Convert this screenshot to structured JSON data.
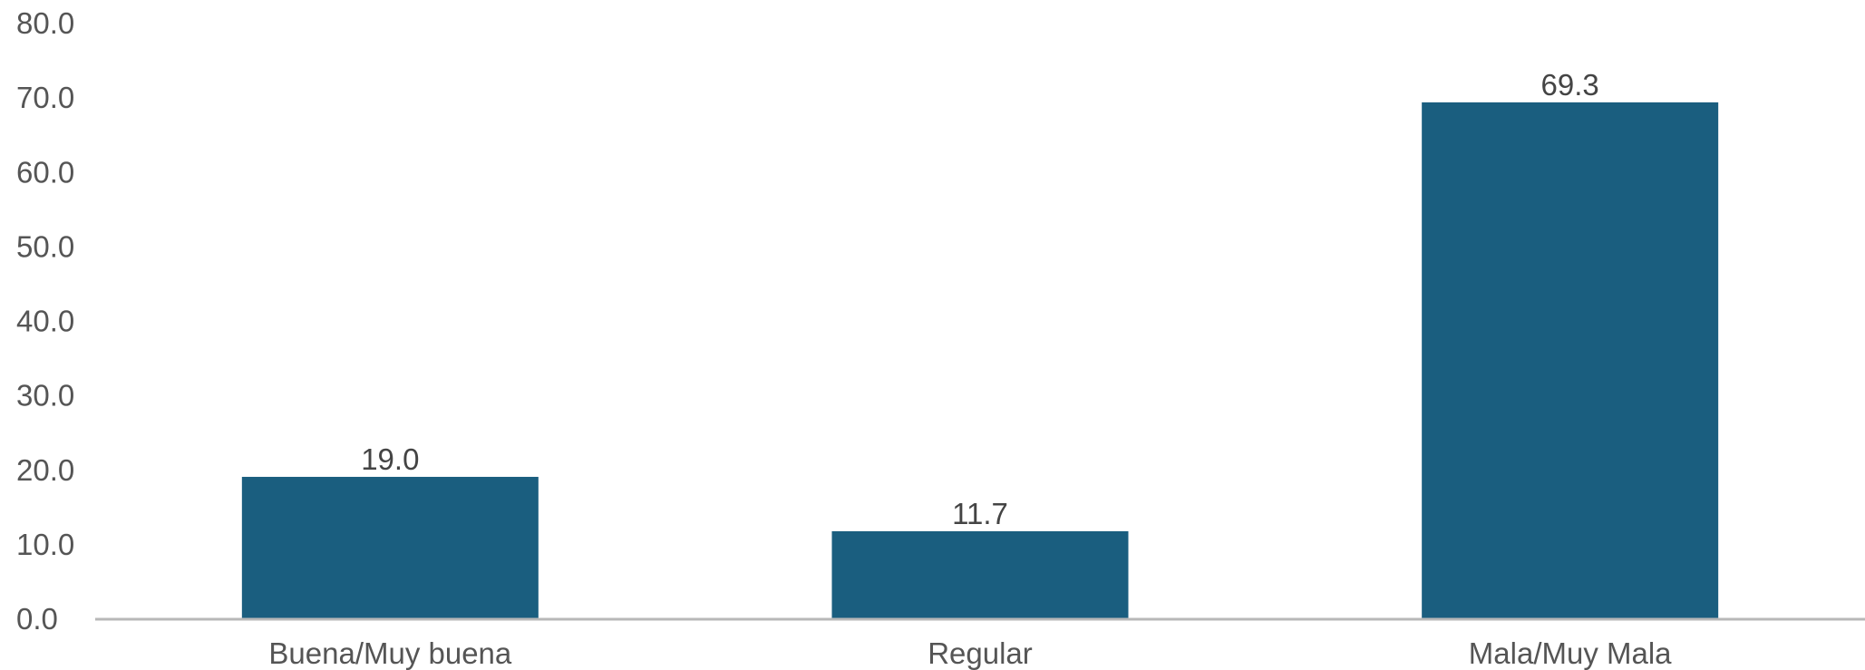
{
  "chart_data": {
    "type": "bar",
    "categories": [
      "Buena/Muy buena",
      "Regular",
      "Mala/Muy Mala"
    ],
    "values": [
      19.0,
      11.7,
      69.3
    ],
    "value_labels": [
      "19.0",
      "11.7",
      "69.3"
    ],
    "title": "",
    "xlabel": "",
    "ylabel": "",
    "ylim": [
      0,
      80
    ],
    "yticks": [
      0,
      10,
      20,
      30,
      40,
      50,
      60,
      70,
      80
    ],
    "ytick_labels": [
      "0.0",
      "10.0",
      "20.0",
      "30.0",
      "40.0",
      "50.0",
      "60.0",
      "70.0",
      "80.0"
    ],
    "grid": false,
    "legend": "none",
    "bar_color": "#1a5e7f",
    "axis_color": "#b8b8b8"
  }
}
